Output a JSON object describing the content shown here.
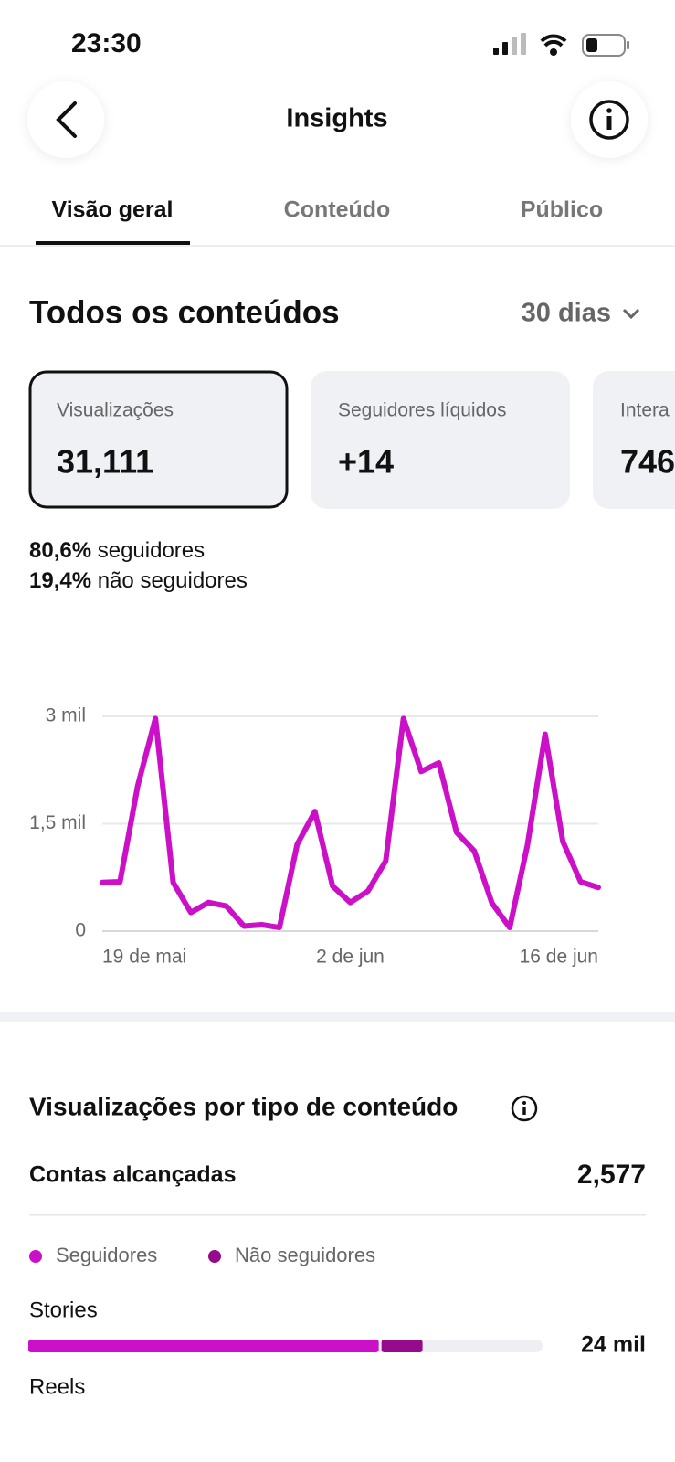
{
  "status_bar": {
    "time": "23:30"
  },
  "header": {
    "title": "Insights"
  },
  "tabs": [
    "Visão geral",
    "Conteúdo",
    "Público"
  ],
  "section": {
    "title": "Todos os conteúdos",
    "period": "30 dias"
  },
  "cards": [
    {
      "label": "Visualizações",
      "value": "31,111"
    },
    {
      "label": "Seguidores líquidos",
      "value": "+14"
    },
    {
      "label": "Intera",
      "value": "746"
    }
  ],
  "breakdown": [
    {
      "percent": "80,6%",
      "label": "seguidores"
    },
    {
      "percent": "19,4%",
      "label": "não seguidores"
    }
  ],
  "chart_data": [
    {
      "type": "line",
      "categories": [
        "19 de mai",
        null,
        null,
        null,
        null,
        null,
        null,
        null,
        null,
        null,
        null,
        null,
        null,
        null,
        "2 de jun",
        null,
        null,
        null,
        null,
        null,
        null,
        null,
        null,
        null,
        null,
        null,
        null,
        null,
        "16 de jun"
      ],
      "series": [
        {
          "name": "Visualizações",
          "color": "#cc10c8",
          "values": [
            680,
            690,
            2030,
            2970,
            680,
            260,
            400,
            350,
            70,
            90,
            50,
            1210,
            1670,
            630,
            400,
            560,
            980,
            2970,
            2230,
            2350,
            1380,
            1120,
            390,
            50,
            1200,
            2750,
            1250,
            690,
            610
          ]
        }
      ],
      "ylim": [
        0,
        3000
      ],
      "yticks": [
        0,
        {
          "value": 1500,
          "label": "1,5 mil"
        },
        {
          "value": 3000,
          "label": "3 mil"
        }
      ],
      "grid": true
    },
    {
      "type": "stacked_hbar",
      "title": "Visualizações por tipo de conteúdo",
      "summary": {
        "label": "Contas alcançadas",
        "value": "2,577"
      },
      "categories": [
        "Stories",
        "Reels"
      ],
      "series": [
        {
          "name": "Seguidores",
          "color": "#cc10c8",
          "values": [
            21200,
            null
          ]
        },
        {
          "name": "Não seguidores",
          "color": "#960a8c",
          "values": [
            2650,
            null
          ]
        }
      ],
      "total_labels": [
        "24 mil",
        null
      ],
      "xlim": [
        0,
        31111
      ]
    }
  ]
}
